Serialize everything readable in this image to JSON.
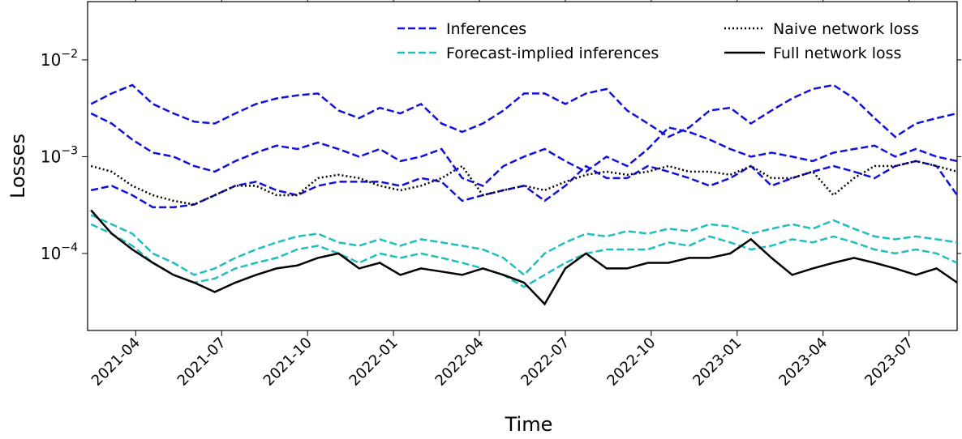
{
  "chart_data": {
    "type": "line",
    "xlabel": "Time",
    "ylabel": "Losses",
    "yscale": "log",
    "xlim": [
      2021.11,
      2023.64
    ],
    "xticks": [
      {
        "value": 2021.25,
        "label": "2021-04"
      },
      {
        "value": 2021.5,
        "label": "2021-07"
      },
      {
        "value": 2021.75,
        "label": "2021-10"
      },
      {
        "value": 2022.0,
        "label": "2022-01"
      },
      {
        "value": 2022.25,
        "label": "2022-04"
      },
      {
        "value": 2022.5,
        "label": "2022-07"
      },
      {
        "value": 2022.75,
        "label": "2022-10"
      },
      {
        "value": 2023.0,
        "label": "2023-01"
      },
      {
        "value": 2023.25,
        "label": "2023-04"
      },
      {
        "value": 2023.5,
        "label": "2023-07"
      }
    ],
    "ylim": [
      1.6e-05,
      0.04
    ],
    "yticks": [
      {
        "value": 0.0001,
        "label": "10",
        "exponent": "−4"
      },
      {
        "value": 0.001,
        "label": "10",
        "exponent": "−3"
      },
      {
        "value": 0.01,
        "label": "10",
        "exponent": "−2"
      }
    ],
    "legend": "upper right",
    "legend_columns": 2,
    "x": [
      2021.12,
      2021.18,
      2021.24,
      2021.3,
      2021.36,
      2021.42,
      2021.48,
      2021.54,
      2021.6,
      2021.66,
      2021.72,
      2021.78,
      2021.84,
      2021.9,
      2021.96,
      2022.02,
      2022.08,
      2022.14,
      2022.2,
      2022.26,
      2022.32,
      2022.38,
      2022.44,
      2022.5,
      2022.56,
      2022.62,
      2022.68,
      2022.74,
      2022.8,
      2022.86,
      2022.92,
      2022.98,
      2023.04,
      2023.1,
      2023.16,
      2023.22,
      2023.28,
      2023.34,
      2023.4,
      2023.46,
      2023.52,
      2023.58,
      2023.64
    ],
    "series": [
      {
        "name": "Inferences",
        "color": "#1010e0",
        "style": "dashed",
        "lines": [
          [
            0.0035,
            0.0045,
            0.0055,
            0.0035,
            0.0028,
            0.0023,
            0.0022,
            0.0028,
            0.0035,
            0.004,
            0.0043,
            0.0045,
            0.003,
            0.0025,
            0.0032,
            0.0028,
            0.0035,
            0.0022,
            0.0018,
            0.0022,
            0.003,
            0.0045,
            0.0045,
            0.0035,
            0.0045,
            0.005,
            0.003,
            0.0022,
            0.0016,
            0.002,
            0.003,
            0.0032,
            0.0022,
            0.003,
            0.004,
            0.005,
            0.0055,
            0.004,
            0.0025,
            0.0016,
            0.0022,
            0.0025,
            0.0028
          ],
          [
            0.0028,
            0.0022,
            0.0015,
            0.0011,
            0.001,
            0.0008,
            0.0007,
            0.0009,
            0.0011,
            0.0013,
            0.0012,
            0.0014,
            0.0012,
            0.001,
            0.0012,
            0.0009,
            0.001,
            0.0012,
            0.0006,
            0.0005,
            0.0008,
            0.001,
            0.0012,
            0.0009,
            0.0007,
            0.001,
            0.0008,
            0.0012,
            0.002,
            0.0018,
            0.0015,
            0.0012,
            0.001,
            0.0011,
            0.001,
            0.0009,
            0.0011,
            0.0012,
            0.0013,
            0.001,
            0.0012,
            0.001,
            0.0009
          ],
          [
            0.00045,
            0.0005,
            0.0004,
            0.0003,
            0.0003,
            0.00032,
            0.0004,
            0.0005,
            0.00055,
            0.00045,
            0.0004,
            0.0005,
            0.00055,
            0.00055,
            0.00055,
            0.0005,
            0.0006,
            0.00055,
            0.00035,
            0.0004,
            0.00045,
            0.0005,
            0.00035,
            0.0005,
            0.0008,
            0.0006,
            0.0006,
            0.0008,
            0.0007,
            0.0006,
            0.0005,
            0.0006,
            0.0008,
            0.0005,
            0.0006,
            0.0007,
            0.0008,
            0.0007,
            0.0006,
            0.0008,
            0.0009,
            0.0008,
            0.0004
          ]
        ]
      },
      {
        "name": "Forecast-implied inferences",
        "color": "#1fbfbf",
        "style": "dashed",
        "lines": [
          [
            0.00025,
            0.0002,
            0.00016,
            0.0001,
            8e-05,
            6e-05,
            7e-05,
            9e-05,
            0.00011,
            0.00013,
            0.00015,
            0.00016,
            0.00013,
            0.00012,
            0.00014,
            0.00012,
            0.00014,
            0.00013,
            0.00012,
            0.00011,
            9e-05,
            6e-05,
            0.0001,
            0.00013,
            0.00016,
            0.00015,
            0.00017,
            0.00016,
            0.00018,
            0.00017,
            0.0002,
            0.00019,
            0.00016,
            0.00018,
            0.0002,
            0.00018,
            0.00022,
            0.00018,
            0.00015,
            0.00014,
            0.00015,
            0.00014,
            0.00013
          ],
          [
            0.0002,
            0.00016,
            0.00012,
            8e-05,
            6e-05,
            5e-05,
            5.5e-05,
            7e-05,
            8e-05,
            9e-05,
            0.00011,
            0.00012,
            0.0001,
            8e-05,
            0.0001,
            9e-05,
            0.0001,
            9e-05,
            8e-05,
            7e-05,
            6e-05,
            4.5e-05,
            6e-05,
            8e-05,
            0.0001,
            0.00011,
            0.00011,
            0.00011,
            0.00013,
            0.00012,
            0.00015,
            0.00013,
            0.00011,
            0.00012,
            0.00014,
            0.00013,
            0.00015,
            0.00013,
            0.00011,
            0.0001,
            0.00011,
            0.0001,
            8e-05
          ]
        ]
      },
      {
        "name": "Naive network loss",
        "color": "#000000",
        "style": "dotted",
        "lines": [
          [
            0.0008,
            0.0007,
            0.0005,
            0.0004,
            0.00035,
            0.00032,
            0.0004,
            0.0005,
            0.0005,
            0.0004,
            0.0004,
            0.0006,
            0.00065,
            0.0006,
            0.0005,
            0.00045,
            0.0005,
            0.0006,
            0.0008,
            0.0004,
            0.00045,
            0.0005,
            0.00045,
            0.00055,
            0.00065,
            0.0007,
            0.00065,
            0.0007,
            0.0008,
            0.0007,
            0.0007,
            0.00065,
            0.0008,
            0.0006,
            0.0006,
            0.0007,
            0.0004,
            0.0006,
            0.0008,
            0.0008,
            0.0009,
            0.0008,
            0.0007
          ]
        ]
      },
      {
        "name": "Full network loss",
        "color": "#000000",
        "style": "solid",
        "lines": [
          [
            0.00028,
            0.00016,
            0.00011,
            8e-05,
            6e-05,
            5e-05,
            4e-05,
            5e-05,
            6e-05,
            7e-05,
            7.5e-05,
            9e-05,
            0.0001,
            7e-05,
            8e-05,
            6e-05,
            7e-05,
            6.5e-05,
            6e-05,
            7e-05,
            6e-05,
            5e-05,
            3e-05,
            7e-05,
            0.0001,
            7e-05,
            7e-05,
            8e-05,
            8e-05,
            9e-05,
            9e-05,
            0.0001,
            0.00014,
            9e-05,
            6e-05,
            7e-05,
            8e-05,
            9e-05,
            8e-05,
            7e-05,
            6e-05,
            7e-05,
            5e-05
          ]
        ]
      }
    ]
  }
}
